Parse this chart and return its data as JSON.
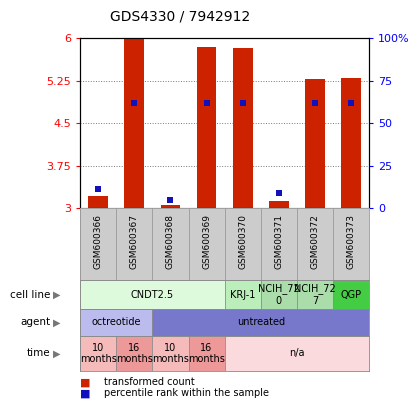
{
  "title": "GDS4330 / 7942912",
  "samples": [
    "GSM600366",
    "GSM600367",
    "GSM600368",
    "GSM600369",
    "GSM600370",
    "GSM600371",
    "GSM600372",
    "GSM600373"
  ],
  "transformed_counts": [
    3.22,
    6.0,
    3.05,
    5.85,
    5.82,
    3.12,
    5.28,
    5.3
  ],
  "percentile_ranks": [
    11,
    62,
    5,
    62,
    62,
    9,
    62,
    62
  ],
  "ylim_left": [
    3.0,
    6.0
  ],
  "ylim_right": [
    0,
    100
  ],
  "yticks_left": [
    3.0,
    3.75,
    4.5,
    5.25,
    6.0
  ],
  "ytick_labels_left": [
    "3",
    "3.75",
    "4.5",
    "5.25",
    "6"
  ],
  "yticks_right": [
    0,
    25,
    50,
    75,
    100
  ],
  "ytick_labels_right": [
    "0",
    "25",
    "50",
    "75",
    "100%"
  ],
  "bar_color": "#CC2200",
  "dot_color": "#1111BB",
  "bar_baseline": 3.0,
  "cell_line_groups": [
    {
      "label": "CNDT2.5",
      "start": 0,
      "end": 3,
      "color": "#DDFADD"
    },
    {
      "label": "KRJ-1",
      "start": 4,
      "end": 4,
      "color": "#BBEEBB"
    },
    {
      "label": "NCIH_72\n0",
      "start": 5,
      "end": 5,
      "color": "#AADDAA"
    },
    {
      "label": "NCIH_72\n7",
      "start": 6,
      "end": 6,
      "color": "#AADDAA"
    },
    {
      "label": "QGP",
      "start": 7,
      "end": 7,
      "color": "#44CC44"
    }
  ],
  "agent_groups": [
    {
      "label": "octreotide",
      "start": 0,
      "end": 1,
      "color": "#BBBBEE"
    },
    {
      "label": "untreated",
      "start": 2,
      "end": 7,
      "color": "#7777CC"
    }
  ],
  "time_groups": [
    {
      "label": "10\nmonths",
      "start": 0,
      "end": 0,
      "color": "#F5BBBB"
    },
    {
      "label": "16\nmonths",
      "start": 1,
      "end": 1,
      "color": "#EE9999"
    },
    {
      "label": "10\nmonths",
      "start": 2,
      "end": 2,
      "color": "#F5BBBB"
    },
    {
      "label": "16\nmonths",
      "start": 3,
      "end": 3,
      "color": "#EE9999"
    },
    {
      "label": "n/a",
      "start": 4,
      "end": 7,
      "color": "#FADADD"
    }
  ],
  "legend_items": [
    {
      "label": "transformed count",
      "color": "#CC2200"
    },
    {
      "label": "percentile rank within the sample",
      "color": "#1111BB"
    }
  ],
  "sample_bg_color": "#CCCCCC",
  "sample_border_color": "#999999",
  "row_border_color": "#888888"
}
